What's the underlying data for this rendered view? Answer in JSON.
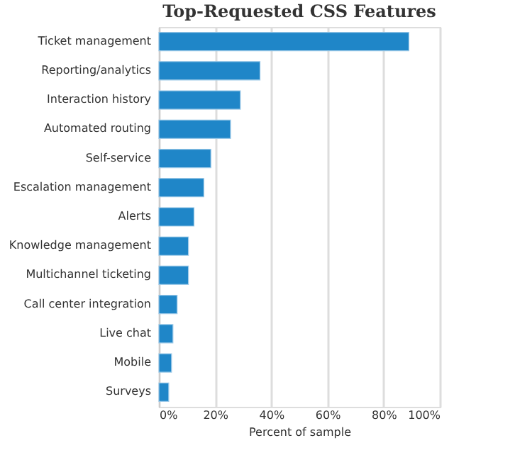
{
  "chart_data": {
    "type": "bar",
    "orientation": "horizontal",
    "title": "Top-Requested CSS Features",
    "xlabel": "Percent of sample",
    "categories": [
      "Ticket management",
      "Reporting/analytics",
      "Interaction history",
      "Automated routing",
      "Self-service",
      "Escalation management",
      "Alerts",
      "Knowledge management",
      "Multichannel ticketing",
      "Call center integration",
      "Live chat",
      "Mobile",
      "Surveys"
    ],
    "values": [
      89,
      36,
      29,
      25.5,
      18.5,
      16,
      12.5,
      10.5,
      10.5,
      6.5,
      5,
      4.5,
      3.5
    ],
    "color": "#1f86c8",
    "xlim": [
      0,
      100
    ],
    "xticks": [
      {
        "value": 0,
        "label": "0%"
      },
      {
        "value": 20,
        "label": "20%"
      },
      {
        "value": 40,
        "label": "40%"
      },
      {
        "value": 60,
        "label": "60%"
      },
      {
        "value": 80,
        "label": "80%"
      },
      {
        "value": 100,
        "label": "100%"
      }
    ],
    "grid": "x"
  }
}
